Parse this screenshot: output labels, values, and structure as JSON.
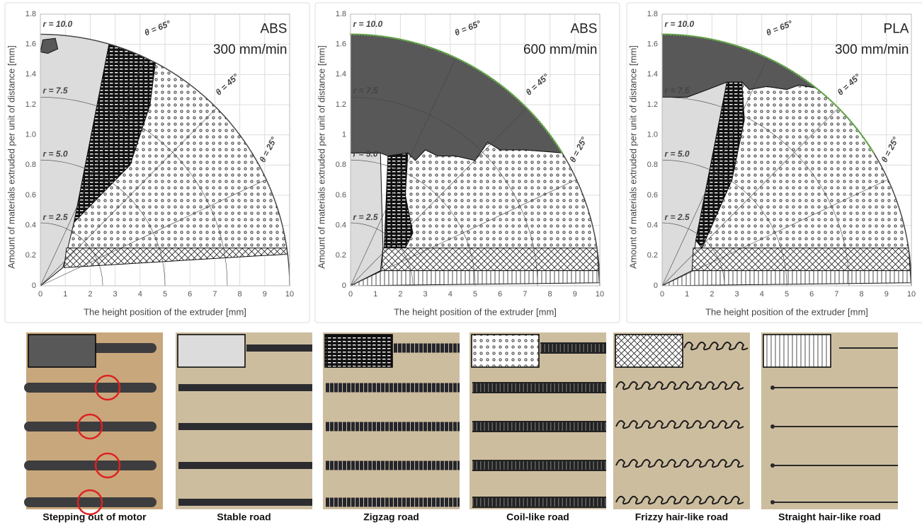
{
  "chart_data": [
    {
      "type": "phase",
      "title": "ABS",
      "subtitle": "300 mm/min",
      "x_label": "The height position of the extruder [mm]",
      "y_label": "Amount of materials extruded per unit of distance [mm]",
      "xlim": [
        0,
        10
      ],
      "ylim": [
        0,
        1.8
      ],
      "xticks": [
        0,
        1,
        2,
        3,
        4,
        5,
        6,
        7,
        8,
        9,
        10
      ],
      "yticks": [
        0,
        0.2,
        0.4,
        0.6,
        0.8,
        {
          "value": 1,
          "label": "1.0"
        },
        1.2,
        1.4,
        1.6,
        1.8
      ],
      "annotations": [
        "r = 10.0",
        "r = 7.5",
        "r = 5.0",
        "r = 2.5",
        "θ = 65°",
        "θ = 45°",
        "θ = 25°"
      ],
      "grid": true
    },
    {
      "type": "phase",
      "title": "ABS",
      "subtitle": "600 mm/min",
      "x_label": "The height position of the extruder [mm]",
      "y_label": "Amount of materials extruded per unit of distance [mm]",
      "xlim": [
        0,
        10
      ],
      "ylim": [
        0,
        1.8
      ],
      "xticks": [
        0,
        1,
        2,
        3,
        4,
        5,
        6,
        7,
        8,
        9,
        10
      ],
      "yticks": [
        0,
        0.2,
        0.4,
        0.6,
        0.8,
        1,
        1.2,
        1.4,
        1.6,
        1.8
      ],
      "annotations": [
        "r = 10.0",
        "r = 7.5",
        "r = 5.0",
        "r = 2.5",
        "θ = 65°",
        "θ = 45°",
        "θ = 25°"
      ],
      "grid": true
    },
    {
      "type": "phase",
      "title": "PLA",
      "subtitle": "300 mm/min",
      "x_label": "The height position of the extruder [mm]",
      "y_label": "Amount of materials extruded per unit of distance [mm]",
      "xlim": [
        0,
        10
      ],
      "ylim": [
        0,
        1.8
      ],
      "xticks": [
        0,
        1,
        2,
        3,
        4,
        5,
        6,
        7,
        8,
        9,
        10
      ],
      "yticks": [
        0,
        0.2,
        0.4,
        0.6,
        0.8,
        {
          "value": 1,
          "label": "1.0"
        },
        1.2,
        1.4,
        1.6,
        1.8
      ],
      "annotations": [
        "r = 10.0",
        "r = 7.5",
        "r = 5.0",
        "r = 2.5",
        "θ = 65°",
        "θ = 45°",
        "θ = 25°"
      ],
      "grid": true
    }
  ],
  "panels": [
    {
      "label": "Stepping out of motor"
    },
    {
      "label": "Stable road"
    },
    {
      "label": "Zigzag road"
    },
    {
      "label": "Coil-like road"
    },
    {
      "label": "Frizzy hair-like road"
    },
    {
      "label": "Straight hair-like road"
    }
  ]
}
